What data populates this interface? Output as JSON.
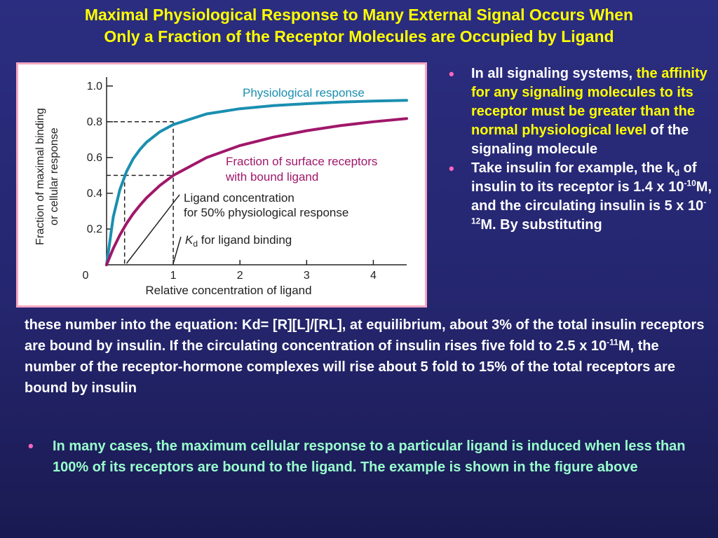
{
  "slide": {
    "title_line1": "Maximal Physiological Response to Many External Signal Occurs When",
    "title_line2": "Only a Fraction of the Receptor Molecules are Occupied by Ligand",
    "bullet1": {
      "plain_lead": "In all signaling systems, ",
      "highlight": "the affinity for any signaling molecules to its receptor must be greater than the normal physiological level",
      "plain_tail": " of the signaling molecule"
    },
    "bullet2": {
      "a": "Take insulin for example, the k",
      "sub": "d",
      "b": " of insulin to its receptor is 1.4 x 10",
      "sup1": "-10",
      "c": "M, and the circulating insulin is 5 x 10",
      "sup2": "-12",
      "d": "M.  By substituting"
    },
    "continuation": {
      "a": "these number into the equation: Kd= [R][L]/[RL], at equilibrium, about 3% of the total insulin receptors are bound by insulin.  If the circulating concentration of insulin rises five fold to 2.5 x 10",
      "sup": "-11",
      "b": "M, the number of the receptor-hormone complexes will rise about 5 fold to 15% of the total receptors are bound by insulin"
    },
    "bullet3": "In many cases, the maximum cellular response to a particular ligand is induced when less than 100% of its receptors are bound to the ligand.  The example is shown in the figure above",
    "bullet_glyph": "•",
    "colors": {
      "title": "#ffff00",
      "bullet": "#ff66bb",
      "bottom_text": "#99ffcc",
      "response_curve": "#1a8fb0",
      "binding_curve": "#a0176a"
    }
  },
  "chart_data": {
    "type": "line",
    "xlabel": "Relative concentration of ligand",
    "ylabel_line1": "Fraction of maximal binding",
    "ylabel_line2": "or cellular response",
    "xlim": [
      0,
      4.5
    ],
    "ylim": [
      0,
      1.05
    ],
    "x_ticks": [
      "0",
      "1",
      "2",
      "3",
      "4"
    ],
    "y_ticks": [
      "0.2",
      "0.4",
      "0.6",
      "0.8",
      "1.0"
    ],
    "series": [
      {
        "name": "Physiological response",
        "color": "#1a8fb0",
        "x": [
          0,
          0.1,
          0.2,
          0.3,
          0.4,
          0.5,
          0.6,
          0.8,
          1.0,
          1.5,
          2.0,
          2.5,
          3.0,
          3.5,
          4.0,
          4.5
        ],
        "y": [
          0,
          0.267,
          0.421,
          0.522,
          0.593,
          0.645,
          0.686,
          0.744,
          0.784,
          0.844,
          0.873,
          0.89,
          0.901,
          0.91,
          0.916,
          0.92
        ]
      },
      {
        "name_line1": "Fraction of surface receptors",
        "name_line2": "with bound ligand",
        "color": "#a0176a",
        "x": [
          0,
          0.1,
          0.2,
          0.3,
          0.4,
          0.5,
          0.6,
          0.8,
          1.0,
          1.5,
          2.0,
          2.5,
          3.0,
          3.5,
          4.0,
          4.5
        ],
        "y": [
          0,
          0.091,
          0.167,
          0.231,
          0.286,
          0.333,
          0.375,
          0.444,
          0.5,
          0.6,
          0.667,
          0.714,
          0.75,
          0.778,
          0.8,
          0.818
        ]
      }
    ],
    "annotations": {
      "dashed_50_response": {
        "x": 0.27,
        "y": 0.5
      },
      "dashed_80_response": {
        "x": 1.0,
        "y": 0.8
      },
      "ligand_conc_label_line1": "Ligand concentration",
      "ligand_conc_label_line2": "for 50% physiological response",
      "kd_label_k": "K",
      "kd_label_d": "d",
      "kd_label_rest": " for ligand binding"
    }
  }
}
